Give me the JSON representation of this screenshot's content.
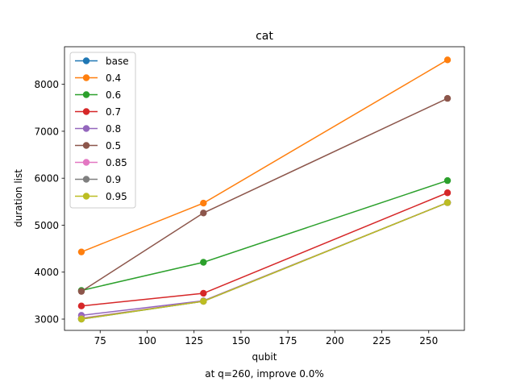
{
  "chart_data": {
    "type": "line",
    "title": "cat",
    "xlabel": "qubit",
    "ylabel": "duration list",
    "caption": "at q=260, improve 0.0%",
    "x": [
      65,
      130,
      260
    ],
    "xlim": [
      56,
      269
    ],
    "ylim": [
      2760,
      8800
    ],
    "xticks": [
      75,
      100,
      125,
      150,
      175,
      200,
      225,
      250
    ],
    "yticks": [
      3000,
      4000,
      5000,
      6000,
      7000,
      8000
    ],
    "grid": false,
    "legend_position": "upper-left",
    "series": [
      {
        "name": "base",
        "color": "#1f77b4",
        "values": [
          3000,
          3380,
          5480
        ]
      },
      {
        "name": "0.4",
        "color": "#ff7f0e",
        "values": [
          4430,
          5470,
          8520
        ]
      },
      {
        "name": "0.6",
        "color": "#2ca02c",
        "values": [
          3610,
          4210,
          5950
        ]
      },
      {
        "name": "0.7",
        "color": "#d62728",
        "values": [
          3280,
          3550,
          5690
        ]
      },
      {
        "name": "0.8",
        "color": "#9467bd",
        "values": [
          3080,
          3390,
          5480
        ]
      },
      {
        "name": "0.5",
        "color": "#8c564b",
        "values": [
          3590,
          5260,
          7700
        ]
      },
      {
        "name": "0.85",
        "color": "#e377c2",
        "values": [
          3020,
          3380,
          5480
        ]
      },
      {
        "name": "0.9",
        "color": "#7f7f7f",
        "values": [
          3010,
          3380,
          5480
        ]
      },
      {
        "name": "0.95",
        "color": "#bcbd22",
        "values": [
          3000,
          3380,
          5480
        ]
      }
    ]
  }
}
